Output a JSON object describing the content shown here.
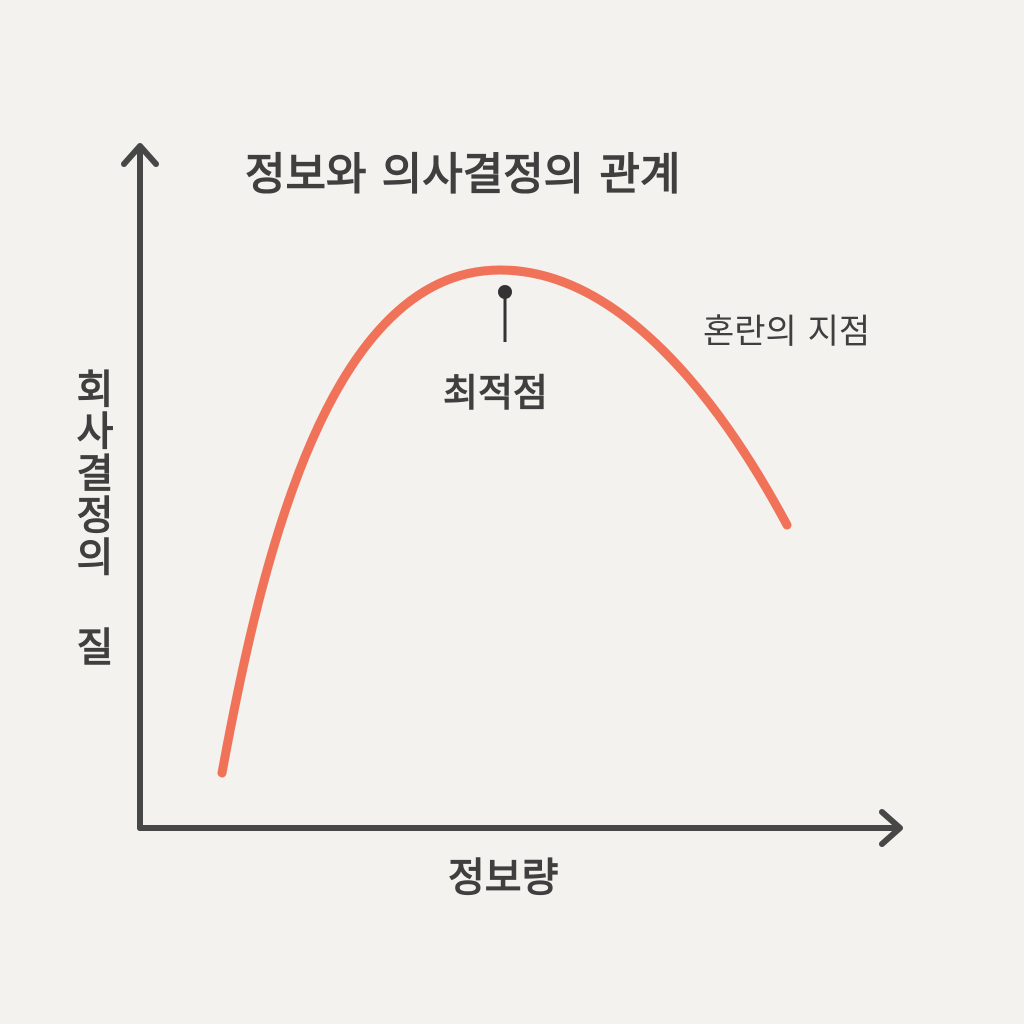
{
  "title": "정보와 의사결정의 관계",
  "y_axis_label": "회사결정의 질",
  "x_axis_label": "정보량",
  "annotations": {
    "optimum": "최적점",
    "confusion": "혼란의 지점"
  }
}
